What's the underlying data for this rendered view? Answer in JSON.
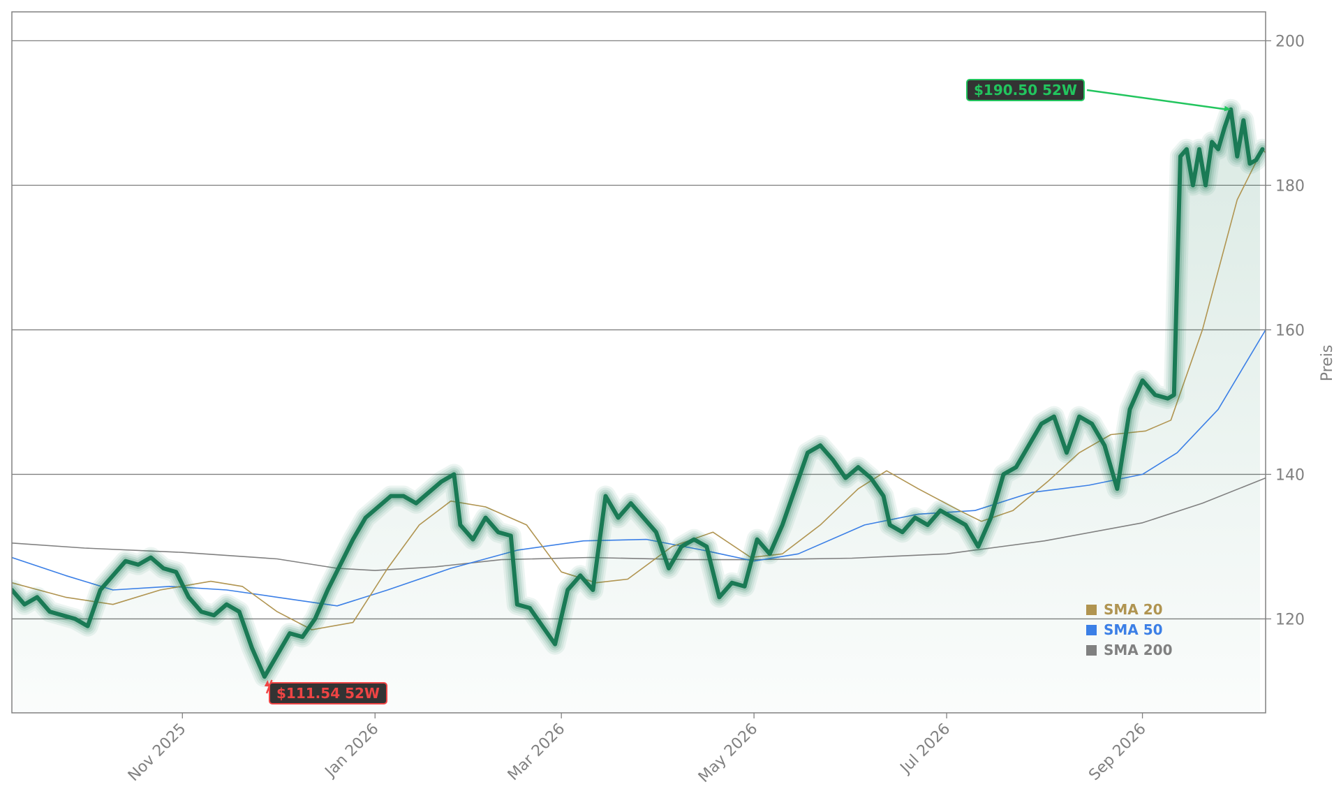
{
  "chart_data": {
    "type": "line",
    "title": "",
    "xlabel": "",
    "ylabel": "Preis",
    "ylim": [
      107,
      204
    ],
    "xlim": [
      "2025-09-08",
      "2026-10-10"
    ],
    "x_ticks": [
      {
        "date": "2025-11-01",
        "label": "Nov 2025"
      },
      {
        "date": "2026-01-01",
        "label": "Jan 2026"
      },
      {
        "date": "2026-03-01",
        "label": "Mar 2026"
      },
      {
        "date": "2026-05-01",
        "label": "May 2026"
      },
      {
        "date": "2026-07-01",
        "label": "Jul 2026"
      },
      {
        "date": "2026-09-01",
        "label": "Sep 2026"
      }
    ],
    "y_ticks": [
      120,
      140,
      160,
      180,
      200
    ],
    "grid": true,
    "legend_position": "lower-right",
    "series": [
      {
        "name": "",
        "color": "#1a7a55",
        "points": [
          [
            "2025-09-08",
            124
          ],
          [
            "2025-09-12",
            122
          ],
          [
            "2025-09-16",
            123
          ],
          [
            "2025-09-20",
            121
          ],
          [
            "2025-09-24",
            120.5
          ],
          [
            "2025-09-28",
            120
          ],
          [
            "2025-10-02",
            119
          ],
          [
            "2025-10-06",
            124
          ],
          [
            "2025-10-10",
            126
          ],
          [
            "2025-10-14",
            128
          ],
          [
            "2025-10-18",
            127.5
          ],
          [
            "2025-10-22",
            128.5
          ],
          [
            "2025-10-26",
            127
          ],
          [
            "2025-10-30",
            126.5
          ],
          [
            "2025-11-03",
            123
          ],
          [
            "2025-11-07",
            121
          ],
          [
            "2025-11-11",
            120.5
          ],
          [
            "2025-11-15",
            122
          ],
          [
            "2025-11-19",
            121
          ],
          [
            "2025-11-23",
            116
          ],
          [
            "2025-11-27",
            112
          ],
          [
            "2025-12-01",
            115
          ],
          [
            "2025-12-05",
            118
          ],
          [
            "2025-12-09",
            117.5
          ],
          [
            "2025-12-13",
            120
          ],
          [
            "2025-12-17",
            124
          ],
          [
            "2025-12-21",
            127.5
          ],
          [
            "2025-12-25",
            131
          ],
          [
            "2025-12-29",
            134
          ],
          [
            "2026-01-02",
            135.5
          ],
          [
            "2026-01-06",
            137
          ],
          [
            "2026-01-10",
            137
          ],
          [
            "2026-01-14",
            136
          ],
          [
            "2026-01-18",
            137.5
          ],
          [
            "2026-01-22",
            139
          ],
          [
            "2026-01-26",
            140
          ],
          [
            "2026-01-28",
            133
          ],
          [
            "2026-02-01",
            131
          ],
          [
            "2026-02-05",
            134
          ],
          [
            "2026-02-09",
            132
          ],
          [
            "2026-02-13",
            131.5
          ],
          [
            "2026-02-15",
            122
          ],
          [
            "2026-02-19",
            121.5
          ],
          [
            "2026-02-23",
            119
          ],
          [
            "2026-02-27",
            116.5
          ],
          [
            "2026-03-03",
            124
          ],
          [
            "2026-03-07",
            126
          ],
          [
            "2026-03-11",
            124
          ],
          [
            "2026-03-15",
            137
          ],
          [
            "2026-03-19",
            134
          ],
          [
            "2026-03-23",
            136
          ],
          [
            "2026-03-27",
            134
          ],
          [
            "2026-03-31",
            132
          ],
          [
            "2026-04-04",
            127
          ],
          [
            "2026-04-08",
            130
          ],
          [
            "2026-04-12",
            131
          ],
          [
            "2026-04-16",
            130
          ],
          [
            "2026-04-20",
            123
          ],
          [
            "2026-04-24",
            125
          ],
          [
            "2026-04-28",
            124.5
          ],
          [
            "2026-05-02",
            131
          ],
          [
            "2026-05-06",
            129
          ],
          [
            "2026-05-10",
            133
          ],
          [
            "2026-05-14",
            138
          ],
          [
            "2026-05-18",
            143
          ],
          [
            "2026-05-22",
            144
          ],
          [
            "2026-05-26",
            142
          ],
          [
            "2026-05-30",
            139.5
          ],
          [
            "2026-06-03",
            141
          ],
          [
            "2026-06-07",
            139.5
          ],
          [
            "2026-06-11",
            137
          ],
          [
            "2026-06-13",
            133
          ],
          [
            "2026-06-17",
            132
          ],
          [
            "2026-06-21",
            134
          ],
          [
            "2026-06-25",
            133
          ],
          [
            "2026-06-29",
            135
          ],
          [
            "2026-07-03",
            134
          ],
          [
            "2026-07-07",
            133
          ],
          [
            "2026-07-11",
            130
          ],
          [
            "2026-07-15",
            134
          ],
          [
            "2026-07-19",
            140
          ],
          [
            "2026-07-23",
            141
          ],
          [
            "2026-07-27",
            144
          ],
          [
            "2026-07-31",
            147
          ],
          [
            "2026-08-04",
            148
          ],
          [
            "2026-08-08",
            143
          ],
          [
            "2026-08-12",
            148
          ],
          [
            "2026-08-16",
            147
          ],
          [
            "2026-08-20",
            144
          ],
          [
            "2026-08-24",
            138
          ],
          [
            "2026-08-28",
            149
          ],
          [
            "2026-09-01",
            153
          ],
          [
            "2026-09-05",
            151
          ],
          [
            "2026-09-09",
            150.5
          ],
          [
            "2026-09-11",
            151
          ],
          [
            "2026-09-13",
            184
          ],
          [
            "2026-09-15",
            185
          ],
          [
            "2026-09-17",
            180
          ],
          [
            "2026-09-19",
            185
          ],
          [
            "2026-09-21",
            180
          ],
          [
            "2026-09-23",
            186
          ],
          [
            "2026-09-25",
            185
          ],
          [
            "2026-09-27",
            188
          ],
          [
            "2026-09-29",
            190.5
          ],
          [
            "2026-10-01",
            184
          ],
          [
            "2026-10-03",
            189
          ],
          [
            "2026-10-05",
            183
          ],
          [
            "2026-10-07",
            183.5
          ],
          [
            "2026-10-09",
            185
          ]
        ]
      },
      {
        "name": "SMA 20",
        "color": "#b09450",
        "points": [
          [
            "2025-09-08",
            125
          ],
          [
            "2025-09-25",
            123
          ],
          [
            "2025-10-10",
            122
          ],
          [
            "2025-10-25",
            124
          ],
          [
            "2025-11-10",
            125.2
          ],
          [
            "2025-11-20",
            124.5
          ],
          [
            "2025-12-01",
            121
          ],
          [
            "2025-12-12",
            118.5
          ],
          [
            "2025-12-25",
            119.5
          ],
          [
            "2026-01-05",
            127
          ],
          [
            "2026-01-15",
            133
          ],
          [
            "2026-01-25",
            136.3
          ],
          [
            "2026-02-05",
            135.5
          ],
          [
            "2026-02-18",
            133
          ],
          [
            "2026-03-01",
            126.5
          ],
          [
            "2026-03-12",
            125
          ],
          [
            "2026-03-22",
            125.5
          ],
          [
            "2026-04-05",
            130
          ],
          [
            "2026-04-18",
            132
          ],
          [
            "2026-04-30",
            128.5
          ],
          [
            "2026-05-10",
            129
          ],
          [
            "2026-05-22",
            133
          ],
          [
            "2026-06-03",
            138
          ],
          [
            "2026-06-12",
            140.5
          ],
          [
            "2026-06-22",
            138
          ],
          [
            "2026-07-05",
            135
          ],
          [
            "2026-07-12",
            133.5
          ],
          [
            "2026-07-22",
            135
          ],
          [
            "2026-08-02",
            139
          ],
          [
            "2026-08-12",
            143
          ],
          [
            "2026-08-22",
            145.5
          ],
          [
            "2026-09-02",
            146
          ],
          [
            "2026-09-10",
            147.5
          ],
          [
            "2026-09-20",
            160
          ],
          [
            "2026-10-01",
            178
          ],
          [
            "2026-10-09",
            185
          ],
          [
            "2026-10-10",
            184.5
          ]
        ]
      },
      {
        "name": "SMA 50",
        "color": "#3b7fe6",
        "points": [
          [
            "2025-09-08",
            128.5
          ],
          [
            "2025-09-25",
            126
          ],
          [
            "2025-10-10",
            124
          ],
          [
            "2025-10-28",
            124.5
          ],
          [
            "2025-11-15",
            124
          ],
          [
            "2025-12-01",
            123
          ],
          [
            "2025-12-20",
            121.8
          ],
          [
            "2026-01-05",
            124
          ],
          [
            "2026-01-25",
            127
          ],
          [
            "2026-02-15",
            129.5
          ],
          [
            "2026-03-08",
            130.8
          ],
          [
            "2026-03-28",
            131
          ],
          [
            "2026-04-15",
            129.5
          ],
          [
            "2026-05-01",
            128
          ],
          [
            "2026-05-15",
            129
          ],
          [
            "2026-06-05",
            133
          ],
          [
            "2026-06-22",
            134.5
          ],
          [
            "2026-07-10",
            135
          ],
          [
            "2026-07-28",
            137.5
          ],
          [
            "2026-08-15",
            138.5
          ],
          [
            "2026-09-01",
            140
          ],
          [
            "2026-09-12",
            143
          ],
          [
            "2026-09-25",
            149
          ],
          [
            "2026-10-10",
            160
          ]
        ]
      },
      {
        "name": "SMA 200",
        "color": "#808080",
        "points": [
          [
            "2025-09-08",
            130.5
          ],
          [
            "2025-10-01",
            129.8
          ],
          [
            "2025-11-01",
            129.2
          ],
          [
            "2025-12-01",
            128.3
          ],
          [
            "2025-12-20",
            127
          ],
          [
            "2026-01-01",
            126.7
          ],
          [
            "2026-01-20",
            127.2
          ],
          [
            "2026-02-10",
            128.2
          ],
          [
            "2026-03-10",
            128.5
          ],
          [
            "2026-04-10",
            128.2
          ],
          [
            "2026-05-01",
            128.2
          ],
          [
            "2026-06-01",
            128.4
          ],
          [
            "2026-07-01",
            129
          ],
          [
            "2026-08-01",
            130.8
          ],
          [
            "2026-09-01",
            133.3
          ],
          [
            "2026-09-20",
            136
          ],
          [
            "2026-10-10",
            139.5
          ]
        ]
      }
    ],
    "annotations": [
      {
        "label": "$190.50 52W",
        "date": "2026-09-29",
        "value": 190.5,
        "color": "#22c55e"
      },
      {
        "label": "$111.54 52W",
        "date": "2025-11-28",
        "value": 111.54,
        "color": "#ef4444"
      }
    ]
  }
}
